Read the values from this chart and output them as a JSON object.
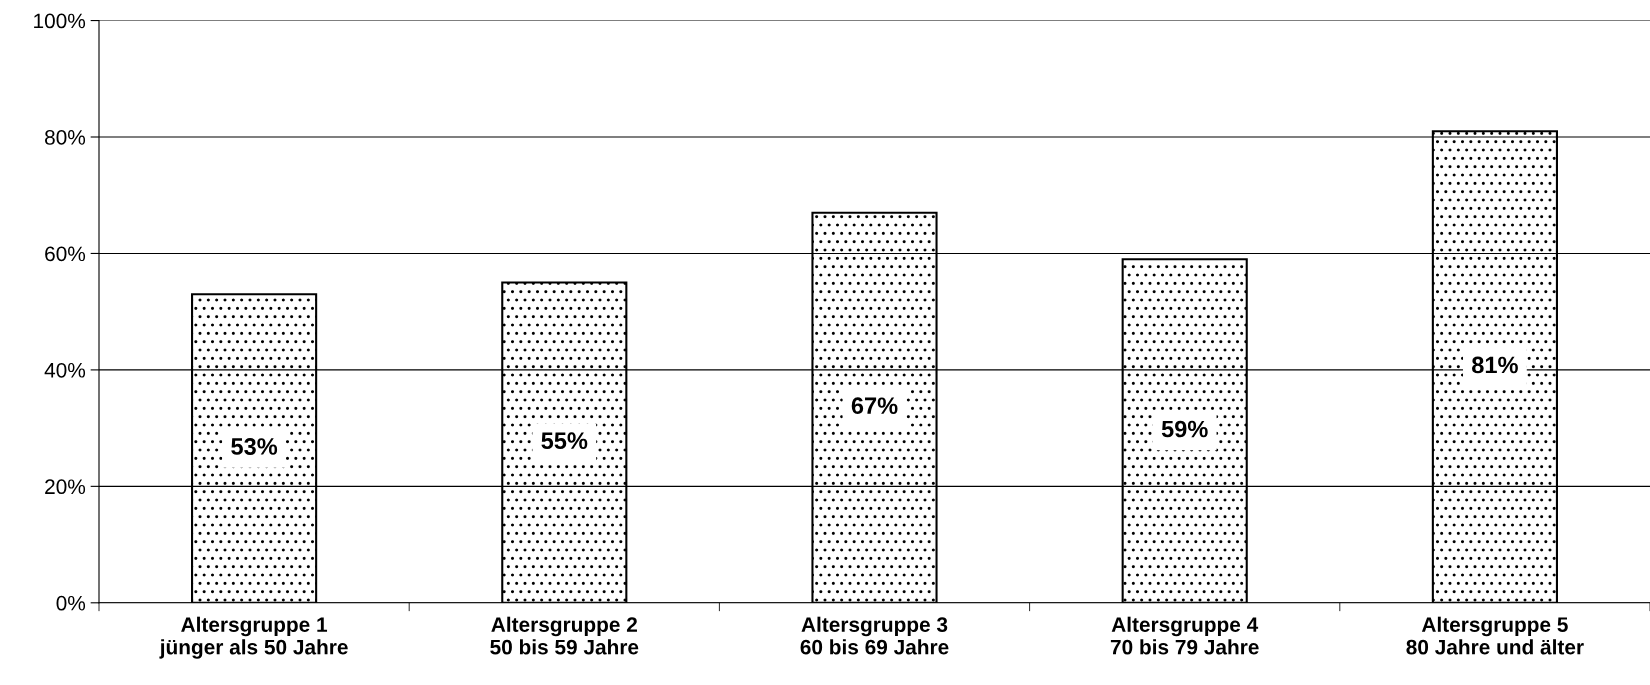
{
  "chart_data": {
    "type": "bar",
    "categories": [
      "Altersgruppe 1\njünger als 50 Jahre",
      "Altersgruppe 2\n50 bis 59 Jahre",
      "Altersgruppe 3\n60 bis 69 Jahre",
      "Altersgruppe 4\n70 bis 79 Jahre",
      "Altersgruppe 5\n80 Jahre und älter"
    ],
    "values": [
      53,
      55,
      67,
      59,
      81
    ],
    "value_labels": [
      "53%",
      "55%",
      "67%",
      "59%",
      "81%"
    ],
    "color": "#000000",
    "ylim": [
      0,
      100
    ],
    "yticks": [
      {
        "value": 0,
        "label": "0%"
      },
      {
        "value": 20,
        "label": "20%"
      },
      {
        "value": 40,
        "label": "40%"
      },
      {
        "value": 60,
        "label": "60%"
      },
      {
        "value": 80,
        "label": "80%"
      },
      {
        "value": 100,
        "label": "100%"
      }
    ],
    "grid": "y"
  }
}
